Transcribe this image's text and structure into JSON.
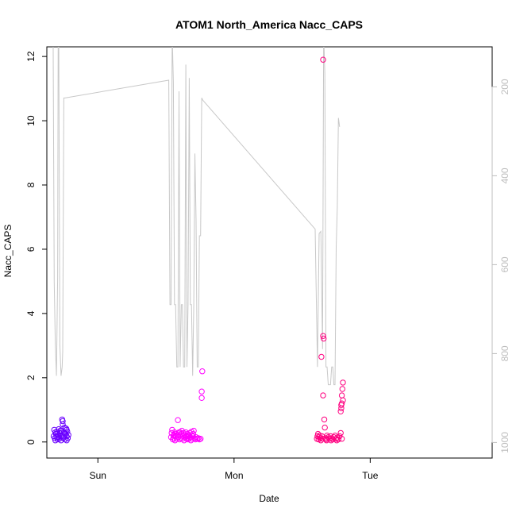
{
  "chart_data": {
    "type": "scatter",
    "title": "ATOM1 North_America Nacc_CAPS",
    "xlabel": "Date",
    "ylabel": "Nacc_CAPS",
    "x_ticks": [
      {
        "label": "Sun",
        "value": 0
      },
      {
        "label": "Mon",
        "value": 24
      },
      {
        "label": "Tue",
        "value": 48
      }
    ],
    "xlim": [
      -9.0,
      69.5
    ],
    "ylim": [
      -0.5,
      12.3
    ],
    "y_ticks": [
      0,
      2,
      4,
      6,
      8,
      10,
      12
    ],
    "right_axis": {
      "reversed": true,
      "ticks": [
        200,
        400,
        600,
        800,
        1000
      ],
      "lim": [
        1035,
        110
      ],
      "color": "#bdbdbd"
    },
    "grid": false,
    "series": [
      {
        "color": "#6a00ff",
        "points": [
          [
            -7.8,
            0.18
          ],
          [
            -7.7,
            0.38
          ],
          [
            -7.6,
            0.12
          ],
          [
            -7.5,
            0.05
          ],
          [
            -7.4,
            0.25
          ],
          [
            -7.3,
            0.15
          ],
          [
            -7.2,
            0.32
          ],
          [
            -7.1,
            0.08
          ],
          [
            -7.0,
            0.22
          ],
          [
            -6.9,
            0.4
          ],
          [
            -6.8,
            0.1
          ],
          [
            -6.7,
            0.28
          ],
          [
            -6.6,
            0.18
          ],
          [
            -6.5,
            0.05
          ],
          [
            -6.4,
            0.35
          ],
          [
            -6.3,
            0.2
          ],
          [
            -6.3,
            0.7
          ],
          [
            -6.2,
            0.55
          ],
          [
            -6.2,
            0.65
          ],
          [
            -6.1,
            0.12
          ],
          [
            -6.0,
            0.3
          ],
          [
            -5.9,
            0.45
          ],
          [
            -5.8,
            0.08
          ],
          [
            -5.7,
            0.25
          ],
          [
            -5.6,
            0.42
          ],
          [
            -5.5,
            0.18
          ],
          [
            -5.5,
            0.05
          ],
          [
            -5.4,
            0.32
          ],
          [
            -5.3,
            0.12
          ],
          [
            -5.2,
            0.22
          ],
          [
            -7.5,
            0.3
          ],
          [
            -7.0,
            0.15
          ],
          [
            -6.6,
            0.36
          ],
          [
            -6.0,
            0.18
          ],
          [
            -5.8,
            0.28
          ],
          [
            -5.5,
            0.38
          ]
        ]
      },
      {
        "color": "#ff00ff",
        "points": [
          [
            12.9,
            0.15
          ],
          [
            13.0,
            0.28
          ],
          [
            13.1,
            0.38
          ],
          [
            13.2,
            0.08
          ],
          [
            13.3,
            0.2
          ],
          [
            13.4,
            0.12
          ],
          [
            13.5,
            0.3
          ],
          [
            13.6,
            0.05
          ],
          [
            13.7,
            0.18
          ],
          [
            13.8,
            0.25
          ],
          [
            13.9,
            0.1
          ],
          [
            14.0,
            0.22
          ],
          [
            14.1,
            0.68
          ],
          [
            14.2,
            0.15
          ],
          [
            14.3,
            0.3
          ],
          [
            14.4,
            0.08
          ],
          [
            14.5,
            0.2
          ],
          [
            14.6,
            0.12
          ],
          [
            14.7,
            0.25
          ],
          [
            14.8,
            0.35
          ],
          [
            14.9,
            0.1
          ],
          [
            15.0,
            0.18
          ],
          [
            15.1,
            0.28
          ],
          [
            15.2,
            0.05
          ],
          [
            15.3,
            0.22
          ],
          [
            15.4,
            0.15
          ],
          [
            15.5,
            0.3
          ],
          [
            15.6,
            0.1
          ],
          [
            15.7,
            0.18
          ],
          [
            15.8,
            0.25
          ],
          [
            15.9,
            0.08
          ],
          [
            16.0,
            0.2
          ],
          [
            16.1,
            0.12
          ],
          [
            16.2,
            0.28
          ],
          [
            16.3,
            0.15
          ],
          [
            16.4,
            0.05
          ],
          [
            16.5,
            0.22
          ],
          [
            16.6,
            0.1
          ],
          [
            16.7,
            0.18
          ],
          [
            16.8,
            0.25
          ],
          [
            16.9,
            0.35
          ],
          [
            17.0,
            0.12
          ],
          [
            17.2,
            0.08
          ],
          [
            17.3,
            0.15
          ],
          [
            17.5,
            0.1
          ],
          [
            17.7,
            0.12
          ],
          [
            17.9,
            0.08
          ],
          [
            18.1,
            0.1
          ],
          [
            18.4,
            2.2
          ],
          [
            18.3,
            1.57
          ],
          [
            18.3,
            1.37
          ],
          [
            13.4,
            0.22
          ],
          [
            14.5,
            0.3
          ],
          [
            15.6,
            0.2
          ],
          [
            16.5,
            0.32
          ]
        ]
      },
      {
        "color": "#ff0080",
        "points": [
          [
            38.6,
            0.1
          ],
          [
            38.7,
            0.18
          ],
          [
            38.8,
            0.25
          ],
          [
            38.9,
            0.08
          ],
          [
            39.0,
            0.15
          ],
          [
            39.1,
            0.2
          ],
          [
            39.2,
            0.12
          ],
          [
            39.3,
            0.05
          ],
          [
            39.4,
            2.65
          ],
          [
            39.5,
            0.18
          ],
          [
            39.6,
            0.1
          ],
          [
            39.7,
            1.45
          ],
          [
            39.7,
            3.3
          ],
          [
            39.8,
            3.22
          ],
          [
            39.9,
            0.7
          ],
          [
            40.0,
            0.45
          ],
          [
            40.1,
            0.12
          ],
          [
            40.2,
            0.08
          ],
          [
            40.4,
            0.2
          ],
          [
            40.6,
            0.15
          ],
          [
            40.8,
            0.1
          ],
          [
            41.0,
            0.18
          ],
          [
            41.2,
            0.12
          ],
          [
            41.4,
            0.08
          ],
          [
            41.6,
            0.15
          ],
          [
            41.8,
            0.2
          ],
          [
            42.0,
            0.1
          ],
          [
            42.2,
            0.14
          ],
          [
            42.4,
            0.08
          ],
          [
            42.6,
            0.18
          ],
          [
            42.8,
            0.28
          ],
          [
            43.0,
            0.1
          ],
          [
            43.2,
            1.85
          ],
          [
            43.1,
            1.65
          ],
          [
            43.0,
            1.45
          ],
          [
            43.0,
            1.2
          ],
          [
            42.9,
            1.15
          ],
          [
            42.9,
            1.05
          ],
          [
            42.8,
            0.95
          ],
          [
            43.2,
            1.3
          ],
          [
            39.7,
            11.9
          ],
          [
            40.3,
            0.05
          ],
          [
            41.1,
            0.05
          ],
          [
            42.1,
            0.05
          ]
        ]
      }
    ],
    "line_series": {
      "color": "#c8c8c8",
      "axis": "right",
      "points": [
        [
          -7.9,
          80
        ],
        [
          -7.7,
          640
        ],
        [
          -7.5,
          780
        ],
        [
          -7.3,
          850
        ],
        [
          -7.1,
          630
        ],
        [
          -7.0,
          80
        ],
        [
          -6.9,
          80
        ],
        [
          -6.7,
          780
        ],
        [
          -6.5,
          850
        ],
        [
          -6.3,
          830
        ],
        [
          -6.2,
          795
        ],
        [
          -6.0,
          225
        ],
        [
          -5.8,
          225
        ],
        [
          12.5,
          185
        ],
        [
          12.7,
          690
        ],
        [
          12.9,
          690
        ],
        [
          13.1,
          80
        ],
        [
          13.3,
          190
        ],
        [
          13.5,
          690
        ],
        [
          13.7,
          690
        ],
        [
          13.9,
          830
        ],
        [
          14.1,
          830
        ],
        [
          14.3,
          210
        ],
        [
          14.5,
          830
        ],
        [
          14.7,
          690
        ],
        [
          14.9,
          690
        ],
        [
          15.1,
          830
        ],
        [
          15.3,
          830
        ],
        [
          15.5,
          150
        ],
        [
          15.7,
          830
        ],
        [
          15.9,
          690
        ],
        [
          16.1,
          180
        ],
        [
          16.3,
          690
        ],
        [
          16.5,
          690
        ],
        [
          16.7,
          850
        ],
        [
          16.9,
          690
        ],
        [
          17.1,
          350
        ],
        [
          17.3,
          500
        ],
        [
          17.5,
          830
        ],
        [
          17.7,
          830
        ],
        [
          17.9,
          535
        ],
        [
          18.1,
          535
        ],
        [
          18.3,
          225
        ],
        [
          18.5,
          230
        ],
        [
          38.3,
          520
        ],
        [
          38.7,
          830
        ],
        [
          39.0,
          530
        ],
        [
          39.3,
          525
        ],
        [
          39.6,
          790
        ],
        [
          39.8,
          80
        ],
        [
          40.0,
          170
        ],
        [
          40.2,
          830
        ],
        [
          40.4,
          830
        ],
        [
          40.6,
          870
        ],
        [
          40.8,
          870
        ],
        [
          41.0,
          870
        ],
        [
          41.2,
          830
        ],
        [
          41.4,
          830
        ],
        [
          41.6,
          870
        ],
        [
          41.8,
          870
        ],
        [
          42.0,
          560
        ],
        [
          42.2,
          470
        ],
        [
          42.4,
          270
        ],
        [
          42.6,
          290
        ]
      ]
    }
  }
}
